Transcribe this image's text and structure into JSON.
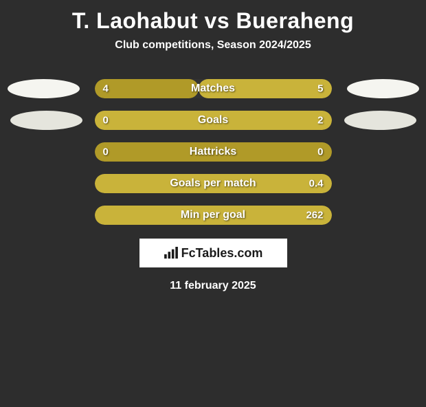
{
  "title": "T. Laohabut vs Bueraheng",
  "subtitle": "Club competitions, Season 2024/2025",
  "date": "11 february 2025",
  "logo_text": "FcTables.com",
  "colors": {
    "background": "#2d2d2d",
    "left_bar": "#b09a28",
    "right_bar": "#c9b33a",
    "track": "#333333",
    "oval_light": "#f5f5f0",
    "oval_dark": "#e5e5dd",
    "text": "#ffffff"
  },
  "stats": [
    {
      "label": "Matches",
      "left_value": "4",
      "right_value": "5",
      "left_pct": 44,
      "right_pct": 56,
      "show_ovals": "top"
    },
    {
      "label": "Goals",
      "left_value": "0",
      "right_value": "2",
      "left_pct": 18,
      "right_pct": 100,
      "show_ovals": "bot"
    },
    {
      "label": "Hattricks",
      "left_value": "0",
      "right_value": "0",
      "left_pct": 100,
      "right_pct": 0,
      "show_ovals": "none"
    },
    {
      "label": "Goals per match",
      "left_value": "",
      "right_value": "0.4",
      "left_pct": 0,
      "right_pct": 100,
      "show_ovals": "none"
    },
    {
      "label": "Min per goal",
      "left_value": "",
      "right_value": "262",
      "left_pct": 0,
      "right_pct": 100,
      "show_ovals": "none"
    }
  ]
}
